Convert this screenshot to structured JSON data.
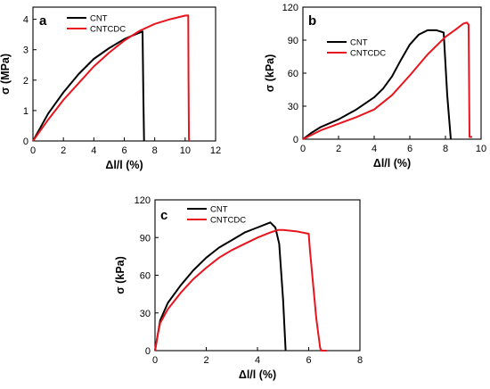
{
  "chart_data": [
    {
      "type": "line",
      "panel_label": "a",
      "xlabel": "Δl/l (%)",
      "ylabel": "σ (MPa)",
      "xlim": [
        0,
        12
      ],
      "ylim": [
        0,
        4.4
      ],
      "xticks": [
        0,
        2,
        4,
        6,
        8,
        10,
        12
      ],
      "yticks": [
        0,
        1,
        2,
        3,
        4
      ],
      "legend_position": "top-left",
      "series": [
        {
          "name": "CNT",
          "color": "#000000",
          "x": [
            0,
            0.5,
            1,
            2,
            3,
            4,
            5,
            6,
            6.7,
            7.2,
            7.25,
            7.3
          ],
          "y": [
            0,
            0.45,
            0.9,
            1.6,
            2.2,
            2.7,
            3.05,
            3.35,
            3.5,
            3.6,
            1.5,
            0.0
          ]
        },
        {
          "name": "CNTCDC",
          "color": "#e8141e",
          "x": [
            0,
            0.5,
            1,
            2,
            3,
            4,
            5,
            6,
            7,
            8,
            9,
            10,
            10.2,
            10.22,
            10.25
          ],
          "y": [
            0,
            0.35,
            0.7,
            1.35,
            1.9,
            2.45,
            2.9,
            3.3,
            3.62,
            3.85,
            4.0,
            4.12,
            4.13,
            2.0,
            0.0
          ]
        }
      ]
    },
    {
      "type": "line",
      "panel_label": "b",
      "xlabel": "Δl/l (%)",
      "ylabel": "σ (kPa)",
      "xlim": [
        0,
        10
      ],
      "ylim": [
        0,
        120
      ],
      "xticks": [
        0,
        2,
        4,
        6,
        8,
        10
      ],
      "yticks": [
        0,
        30,
        60,
        90,
        120
      ],
      "legend_position": "top-center",
      "series": [
        {
          "name": "CNT",
          "color": "#000000",
          "x": [
            0,
            0.5,
            1,
            2,
            3,
            4,
            4.5,
            5,
            5.5,
            6,
            6.5,
            7,
            7.5,
            7.9,
            8.1,
            8.3
          ],
          "y": [
            0,
            6,
            11,
            18,
            27,
            38,
            46,
            57,
            72,
            86,
            95,
            99,
            99,
            97,
            40,
            0
          ]
        },
        {
          "name": "CNTCDC",
          "color": "#e8141e",
          "x": [
            0,
            1,
            2,
            3,
            4,
            5,
            6,
            7,
            8,
            8.6,
            9,
            9.2,
            9.3,
            9.35,
            9.5
          ],
          "y": [
            0,
            8,
            14,
            20,
            27,
            40,
            58,
            77,
            93,
            100,
            105,
            106,
            104,
            2,
            2
          ]
        }
      ]
    },
    {
      "type": "line",
      "panel_label": "c",
      "xlabel": "Δl/l (%)",
      "ylabel": "σ (kPa)",
      "xlim": [
        0,
        8
      ],
      "ylim": [
        0,
        120
      ],
      "xticks": [
        0,
        2,
        4,
        6,
        8
      ],
      "yticks": [
        0,
        30,
        60,
        90,
        120
      ],
      "legend_position": "top-left",
      "series": [
        {
          "name": "CNT",
          "color": "#000000",
          "x": [
            0,
            0.1,
            0.2,
            0.5,
            1,
            1.5,
            2,
            2.5,
            3,
            3.5,
            4,
            4.5,
            4.7,
            4.85,
            5.0,
            5.1
          ],
          "y": [
            0,
            12,
            24,
            38,
            52,
            64,
            74,
            82,
            88,
            94,
            98,
            102,
            98,
            85,
            40,
            0
          ]
        },
        {
          "name": "CNTCDC",
          "color": "#e8141e",
          "x": [
            0,
            0.1,
            0.2,
            0.5,
            1,
            1.5,
            2,
            2.5,
            3,
            3.5,
            4,
            4.5,
            4.8,
            5,
            5.5,
            6.0,
            6.05,
            6.3,
            6.45,
            6.5,
            6.7
          ],
          "y": [
            0,
            12,
            22,
            33,
            46,
            57,
            66,
            74,
            80,
            85,
            90,
            94,
            96,
            96,
            95,
            93,
            80,
            25,
            2,
            0,
            0
          ]
        }
      ]
    }
  ]
}
